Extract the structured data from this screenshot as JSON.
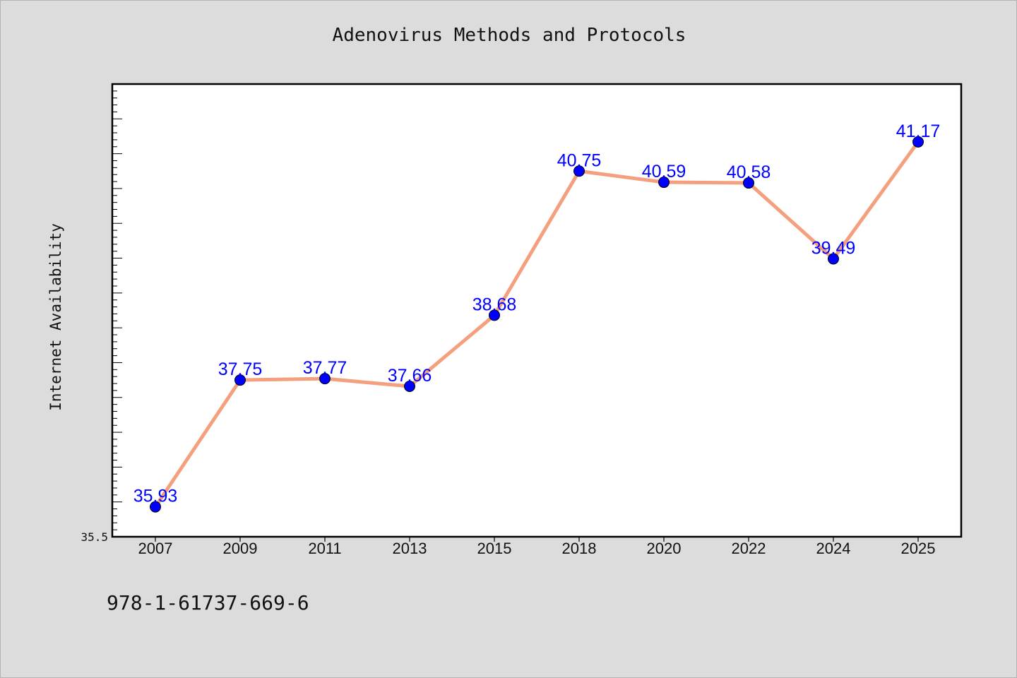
{
  "chart_data": {
    "type": "line",
    "title": "Adenovirus Methods and Protocols",
    "ylabel": "Internet Availability",
    "xlabel": "",
    "categories": [
      "2007",
      "2009",
      "2011",
      "2013",
      "2015",
      "2018",
      "2020",
      "2022",
      "2024",
      "2025"
    ],
    "series": [
      {
        "values": [
          35.93,
          37.75,
          37.77,
          37.66,
          38.68,
          40.75,
          40.59,
          40.58,
          39.49,
          41.17
        ],
        "labels": [
          "35.93",
          "37.75",
          "37.77",
          "37.66",
          "38.68",
          "40.75",
          "40.59",
          "40.58",
          "39.49",
          "41.17"
        ],
        "line_color": "#f4a07e",
        "marker_color": "#0000ff"
      }
    ],
    "ylim": [
      35.5,
      42.0
    ],
    "yticks": [
      {
        "value": 35.5,
        "label": "35.5"
      }
    ],
    "grid": false,
    "legend": "none"
  },
  "footer": {
    "isbn": "978-1-61737-669-6"
  }
}
